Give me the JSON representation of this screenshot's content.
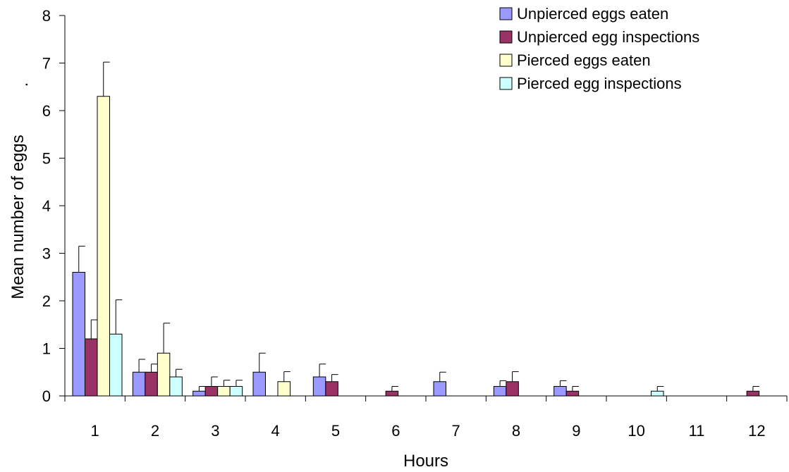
{
  "chart_data": {
    "type": "bar",
    "title": "",
    "xlabel": "Hours",
    "ylabel": "Mean number of eggs",
    "ylabel_extra": ".",
    "categories": [
      "1",
      "2",
      "3",
      "4",
      "5",
      "6",
      "7",
      "8",
      "9",
      "10",
      "11",
      "12"
    ],
    "ylim": [
      0,
      8
    ],
    "yticks": [
      "0",
      "1",
      "2",
      "3",
      "4",
      "5",
      "6",
      "7",
      "8"
    ],
    "grid": false,
    "legend_position": "top-right",
    "series": [
      {
        "name": "Unpierced eggs eaten",
        "color": "#9999ff",
        "values": [
          2.6,
          0.5,
          0.1,
          0.5,
          0.4,
          0,
          0.3,
          0.2,
          0.2,
          0,
          0,
          0
        ],
        "errors": [
          0.55,
          0.27,
          0.1,
          0.4,
          0.27,
          0,
          0.2,
          0.12,
          0.12,
          0,
          0,
          0
        ]
      },
      {
        "name": "Unpierced egg inspections",
        "color": "#993366",
        "values": [
          1.2,
          0.5,
          0.2,
          0,
          0.3,
          0.1,
          0,
          0.3,
          0.1,
          0,
          0,
          0.1
        ],
        "errors": [
          0.4,
          0.17,
          0.2,
          0,
          0.15,
          0.1,
          0,
          0.21,
          0.1,
          0,
          0,
          0.1
        ]
      },
      {
        "name": "Pierced eggs eaten",
        "color": "#ffffcc",
        "values": [
          6.3,
          0.9,
          0.2,
          0.3,
          0,
          0,
          0,
          0,
          0,
          0,
          0,
          0
        ],
        "errors": [
          0.72,
          0.63,
          0.13,
          0.21,
          0,
          0,
          0,
          0,
          0,
          0,
          0,
          0
        ]
      },
      {
        "name": "Pierced egg inspections",
        "color": "#ccffff",
        "values": [
          1.3,
          0.4,
          0.2,
          0,
          0,
          0,
          0,
          0,
          0,
          0.1,
          0,
          0
        ],
        "errors": [
          0.72,
          0.16,
          0.13,
          0,
          0,
          0,
          0,
          0,
          0,
          0.1,
          0,
          0
        ]
      }
    ]
  }
}
